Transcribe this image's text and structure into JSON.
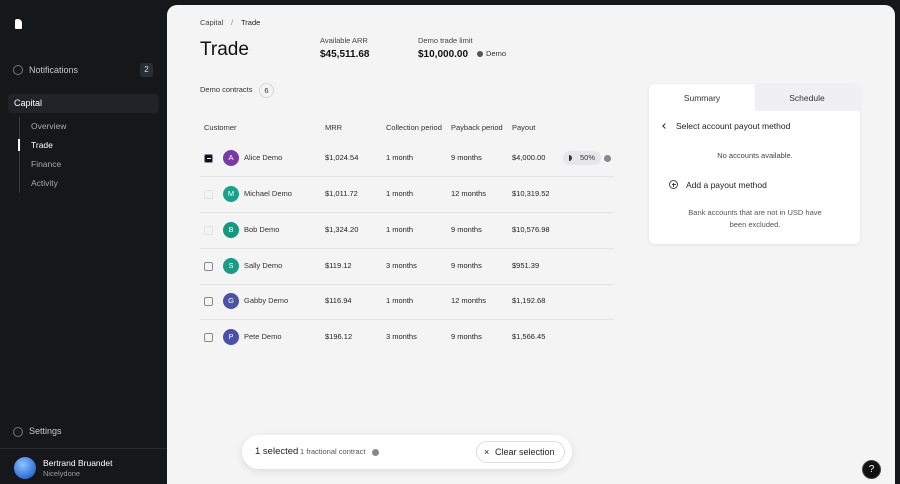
{
  "sidebar": {
    "notifications": {
      "label": "Notifications",
      "count": 2
    },
    "nav": {
      "section": "Capital",
      "items": [
        "Overview",
        "Trade",
        "Finance",
        "Activity"
      ],
      "active": 1
    },
    "settings": "Settings",
    "user": {
      "name": "Bertrand Bruandet",
      "company": "Nicelydone"
    }
  },
  "header": {
    "breadcrumb": [
      "Capital",
      "Trade"
    ],
    "separator": "/",
    "title": "Trade",
    "stats": [
      {
        "label": "Available ARR",
        "value": "$45,511.68"
      },
      {
        "label": "Demo trade limit",
        "value": "$10,000.00",
        "tag": "Demo"
      }
    ]
  },
  "contracts": {
    "label": "Demo contracts",
    "count": 6
  },
  "table": {
    "columns": [
      "Customer",
      "MRR",
      "Collection period",
      "Payback period",
      "Payout"
    ],
    "rows": [
      {
        "initial": "A",
        "name": "Alice Demo",
        "mrr": "$1,024.54",
        "collection": "1 month",
        "payback": "9 months",
        "payout": "$4,000.00",
        "selected": true,
        "disabled": false,
        "fraction": "50%",
        "color": "#7a3aa6"
      },
      {
        "initial": "M",
        "name": "Michael Demo",
        "mrr": "$1,011.72",
        "collection": "1 month",
        "payback": "12 months",
        "payout": "$10,319.52",
        "selected": false,
        "disabled": true,
        "color": "#17a28c"
      },
      {
        "initial": "B",
        "name": "Bob Demo",
        "mrr": "$1,324.20",
        "collection": "1 month",
        "payback": "9 months",
        "payout": "$10,576.98",
        "selected": false,
        "disabled": true,
        "color": "#15987c"
      },
      {
        "initial": "S",
        "name": "Sally Demo",
        "mrr": "$119.12",
        "collection": "3 months",
        "payback": "9 months",
        "payout": "$951.39",
        "selected": false,
        "disabled": false,
        "color": "#1b9a84"
      },
      {
        "initial": "G",
        "name": "Gabby Demo",
        "mrr": "$116.94",
        "collection": "1 month",
        "payback": "12 months",
        "payout": "$1,192.68",
        "selected": false,
        "disabled": false,
        "color": "#4953a6"
      },
      {
        "initial": "P",
        "name": "Pete Demo",
        "mrr": "$196.12",
        "collection": "3 months",
        "payback": "9 months",
        "payout": "$1,566.45",
        "selected": false,
        "disabled": false,
        "color": "#4a4fae"
      }
    ]
  },
  "panel": {
    "tabs": [
      "Summary",
      "Schedule"
    ],
    "active": 0,
    "back": "Select account payout method",
    "empty": "No accounts available.",
    "add": "Add a payout method",
    "note": "Bank accounts that are not in USD have been excluded."
  },
  "selection": {
    "selected": "1 selected",
    "fractional": "1 fractional contract",
    "clear": "Clear selection"
  },
  "help": "?"
}
